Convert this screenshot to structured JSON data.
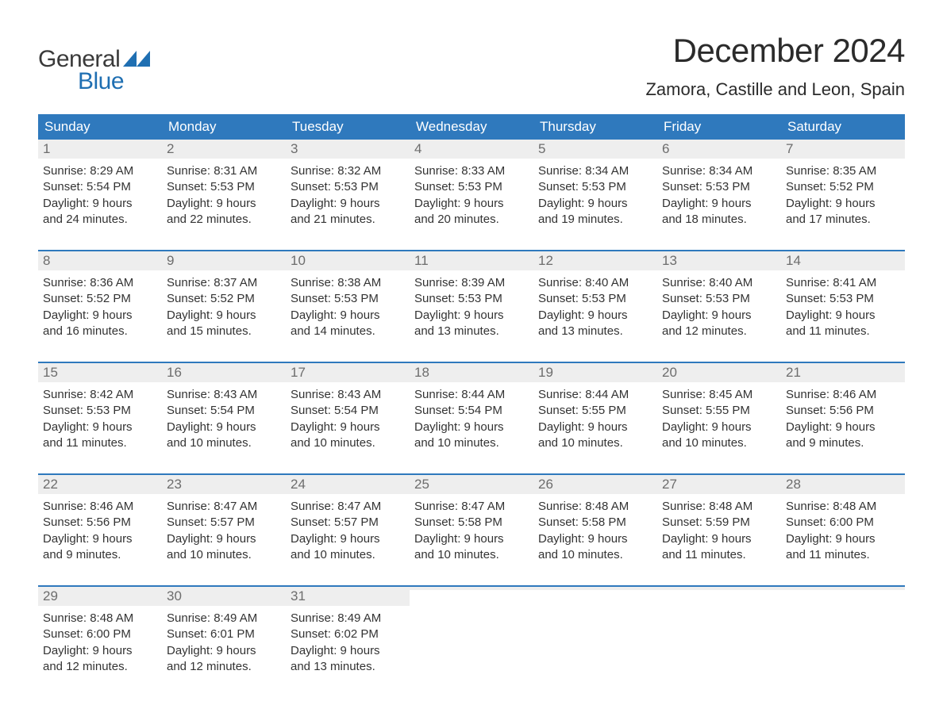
{
  "brand": {
    "general": "General",
    "blue": "Blue"
  },
  "title": "December 2024",
  "location": "Zamora, Castille and Leon, Spain",
  "colors": {
    "header_bg": "#2f79bd",
    "header_text": "#ffffff",
    "daynum_bg": "#eeeeee",
    "daynum_text": "#6d6d6d",
    "body_text": "#333333",
    "week_divider": "#2f79bd",
    "logo_blue": "#1f6fb2",
    "logo_gray": "#3a3a3a",
    "page_bg": "#ffffff"
  },
  "typography": {
    "title_fontsize": 42,
    "location_fontsize": 22,
    "header_fontsize": 17,
    "daynum_fontsize": 17,
    "body_fontsize": 15,
    "font_family": "Arial"
  },
  "layout": {
    "columns": 7,
    "rows": 5
  },
  "day_names": [
    "Sunday",
    "Monday",
    "Tuesday",
    "Wednesday",
    "Thursday",
    "Friday",
    "Saturday"
  ],
  "weeks": [
    [
      {
        "n": "1",
        "sunrise": "Sunrise: 8:29 AM",
        "sunset": "Sunset: 5:54 PM",
        "day1": "Daylight: 9 hours",
        "day2": "and 24 minutes."
      },
      {
        "n": "2",
        "sunrise": "Sunrise: 8:31 AM",
        "sunset": "Sunset: 5:53 PM",
        "day1": "Daylight: 9 hours",
        "day2": "and 22 minutes."
      },
      {
        "n": "3",
        "sunrise": "Sunrise: 8:32 AM",
        "sunset": "Sunset: 5:53 PM",
        "day1": "Daylight: 9 hours",
        "day2": "and 21 minutes."
      },
      {
        "n": "4",
        "sunrise": "Sunrise: 8:33 AM",
        "sunset": "Sunset: 5:53 PM",
        "day1": "Daylight: 9 hours",
        "day2": "and 20 minutes."
      },
      {
        "n": "5",
        "sunrise": "Sunrise: 8:34 AM",
        "sunset": "Sunset: 5:53 PM",
        "day1": "Daylight: 9 hours",
        "day2": "and 19 minutes."
      },
      {
        "n": "6",
        "sunrise": "Sunrise: 8:34 AM",
        "sunset": "Sunset: 5:53 PM",
        "day1": "Daylight: 9 hours",
        "day2": "and 18 minutes."
      },
      {
        "n": "7",
        "sunrise": "Sunrise: 8:35 AM",
        "sunset": "Sunset: 5:52 PM",
        "day1": "Daylight: 9 hours",
        "day2": "and 17 minutes."
      }
    ],
    [
      {
        "n": "8",
        "sunrise": "Sunrise: 8:36 AM",
        "sunset": "Sunset: 5:52 PM",
        "day1": "Daylight: 9 hours",
        "day2": "and 16 minutes."
      },
      {
        "n": "9",
        "sunrise": "Sunrise: 8:37 AM",
        "sunset": "Sunset: 5:52 PM",
        "day1": "Daylight: 9 hours",
        "day2": "and 15 minutes."
      },
      {
        "n": "10",
        "sunrise": "Sunrise: 8:38 AM",
        "sunset": "Sunset: 5:53 PM",
        "day1": "Daylight: 9 hours",
        "day2": "and 14 minutes."
      },
      {
        "n": "11",
        "sunrise": "Sunrise: 8:39 AM",
        "sunset": "Sunset: 5:53 PM",
        "day1": "Daylight: 9 hours",
        "day2": "and 13 minutes."
      },
      {
        "n": "12",
        "sunrise": "Sunrise: 8:40 AM",
        "sunset": "Sunset: 5:53 PM",
        "day1": "Daylight: 9 hours",
        "day2": "and 13 minutes."
      },
      {
        "n": "13",
        "sunrise": "Sunrise: 8:40 AM",
        "sunset": "Sunset: 5:53 PM",
        "day1": "Daylight: 9 hours",
        "day2": "and 12 minutes."
      },
      {
        "n": "14",
        "sunrise": "Sunrise: 8:41 AM",
        "sunset": "Sunset: 5:53 PM",
        "day1": "Daylight: 9 hours",
        "day2": "and 11 minutes."
      }
    ],
    [
      {
        "n": "15",
        "sunrise": "Sunrise: 8:42 AM",
        "sunset": "Sunset: 5:53 PM",
        "day1": "Daylight: 9 hours",
        "day2": "and 11 minutes."
      },
      {
        "n": "16",
        "sunrise": "Sunrise: 8:43 AM",
        "sunset": "Sunset: 5:54 PM",
        "day1": "Daylight: 9 hours",
        "day2": "and 10 minutes."
      },
      {
        "n": "17",
        "sunrise": "Sunrise: 8:43 AM",
        "sunset": "Sunset: 5:54 PM",
        "day1": "Daylight: 9 hours",
        "day2": "and 10 minutes."
      },
      {
        "n": "18",
        "sunrise": "Sunrise: 8:44 AM",
        "sunset": "Sunset: 5:54 PM",
        "day1": "Daylight: 9 hours",
        "day2": "and 10 minutes."
      },
      {
        "n": "19",
        "sunrise": "Sunrise: 8:44 AM",
        "sunset": "Sunset: 5:55 PM",
        "day1": "Daylight: 9 hours",
        "day2": "and 10 minutes."
      },
      {
        "n": "20",
        "sunrise": "Sunrise: 8:45 AM",
        "sunset": "Sunset: 5:55 PM",
        "day1": "Daylight: 9 hours",
        "day2": "and 10 minutes."
      },
      {
        "n": "21",
        "sunrise": "Sunrise: 8:46 AM",
        "sunset": "Sunset: 5:56 PM",
        "day1": "Daylight: 9 hours",
        "day2": "and 9 minutes."
      }
    ],
    [
      {
        "n": "22",
        "sunrise": "Sunrise: 8:46 AM",
        "sunset": "Sunset: 5:56 PM",
        "day1": "Daylight: 9 hours",
        "day2": "and 9 minutes."
      },
      {
        "n": "23",
        "sunrise": "Sunrise: 8:47 AM",
        "sunset": "Sunset: 5:57 PM",
        "day1": "Daylight: 9 hours",
        "day2": "and 10 minutes."
      },
      {
        "n": "24",
        "sunrise": "Sunrise: 8:47 AM",
        "sunset": "Sunset: 5:57 PM",
        "day1": "Daylight: 9 hours",
        "day2": "and 10 minutes."
      },
      {
        "n": "25",
        "sunrise": "Sunrise: 8:47 AM",
        "sunset": "Sunset: 5:58 PM",
        "day1": "Daylight: 9 hours",
        "day2": "and 10 minutes."
      },
      {
        "n": "26",
        "sunrise": "Sunrise: 8:48 AM",
        "sunset": "Sunset: 5:58 PM",
        "day1": "Daylight: 9 hours",
        "day2": "and 10 minutes."
      },
      {
        "n": "27",
        "sunrise": "Sunrise: 8:48 AM",
        "sunset": "Sunset: 5:59 PM",
        "day1": "Daylight: 9 hours",
        "day2": "and 11 minutes."
      },
      {
        "n": "28",
        "sunrise": "Sunrise: 8:48 AM",
        "sunset": "Sunset: 6:00 PM",
        "day1": "Daylight: 9 hours",
        "day2": "and 11 minutes."
      }
    ],
    [
      {
        "n": "29",
        "sunrise": "Sunrise: 8:48 AM",
        "sunset": "Sunset: 6:00 PM",
        "day1": "Daylight: 9 hours",
        "day2": "and 12 minutes."
      },
      {
        "n": "30",
        "sunrise": "Sunrise: 8:49 AM",
        "sunset": "Sunset: 6:01 PM",
        "day1": "Daylight: 9 hours",
        "day2": "and 12 minutes."
      },
      {
        "n": "31",
        "sunrise": "Sunrise: 8:49 AM",
        "sunset": "Sunset: 6:02 PM",
        "day1": "Daylight: 9 hours",
        "day2": "and 13 minutes."
      },
      {
        "empty": true
      },
      {
        "empty": true
      },
      {
        "empty": true
      },
      {
        "empty": true
      }
    ]
  ]
}
